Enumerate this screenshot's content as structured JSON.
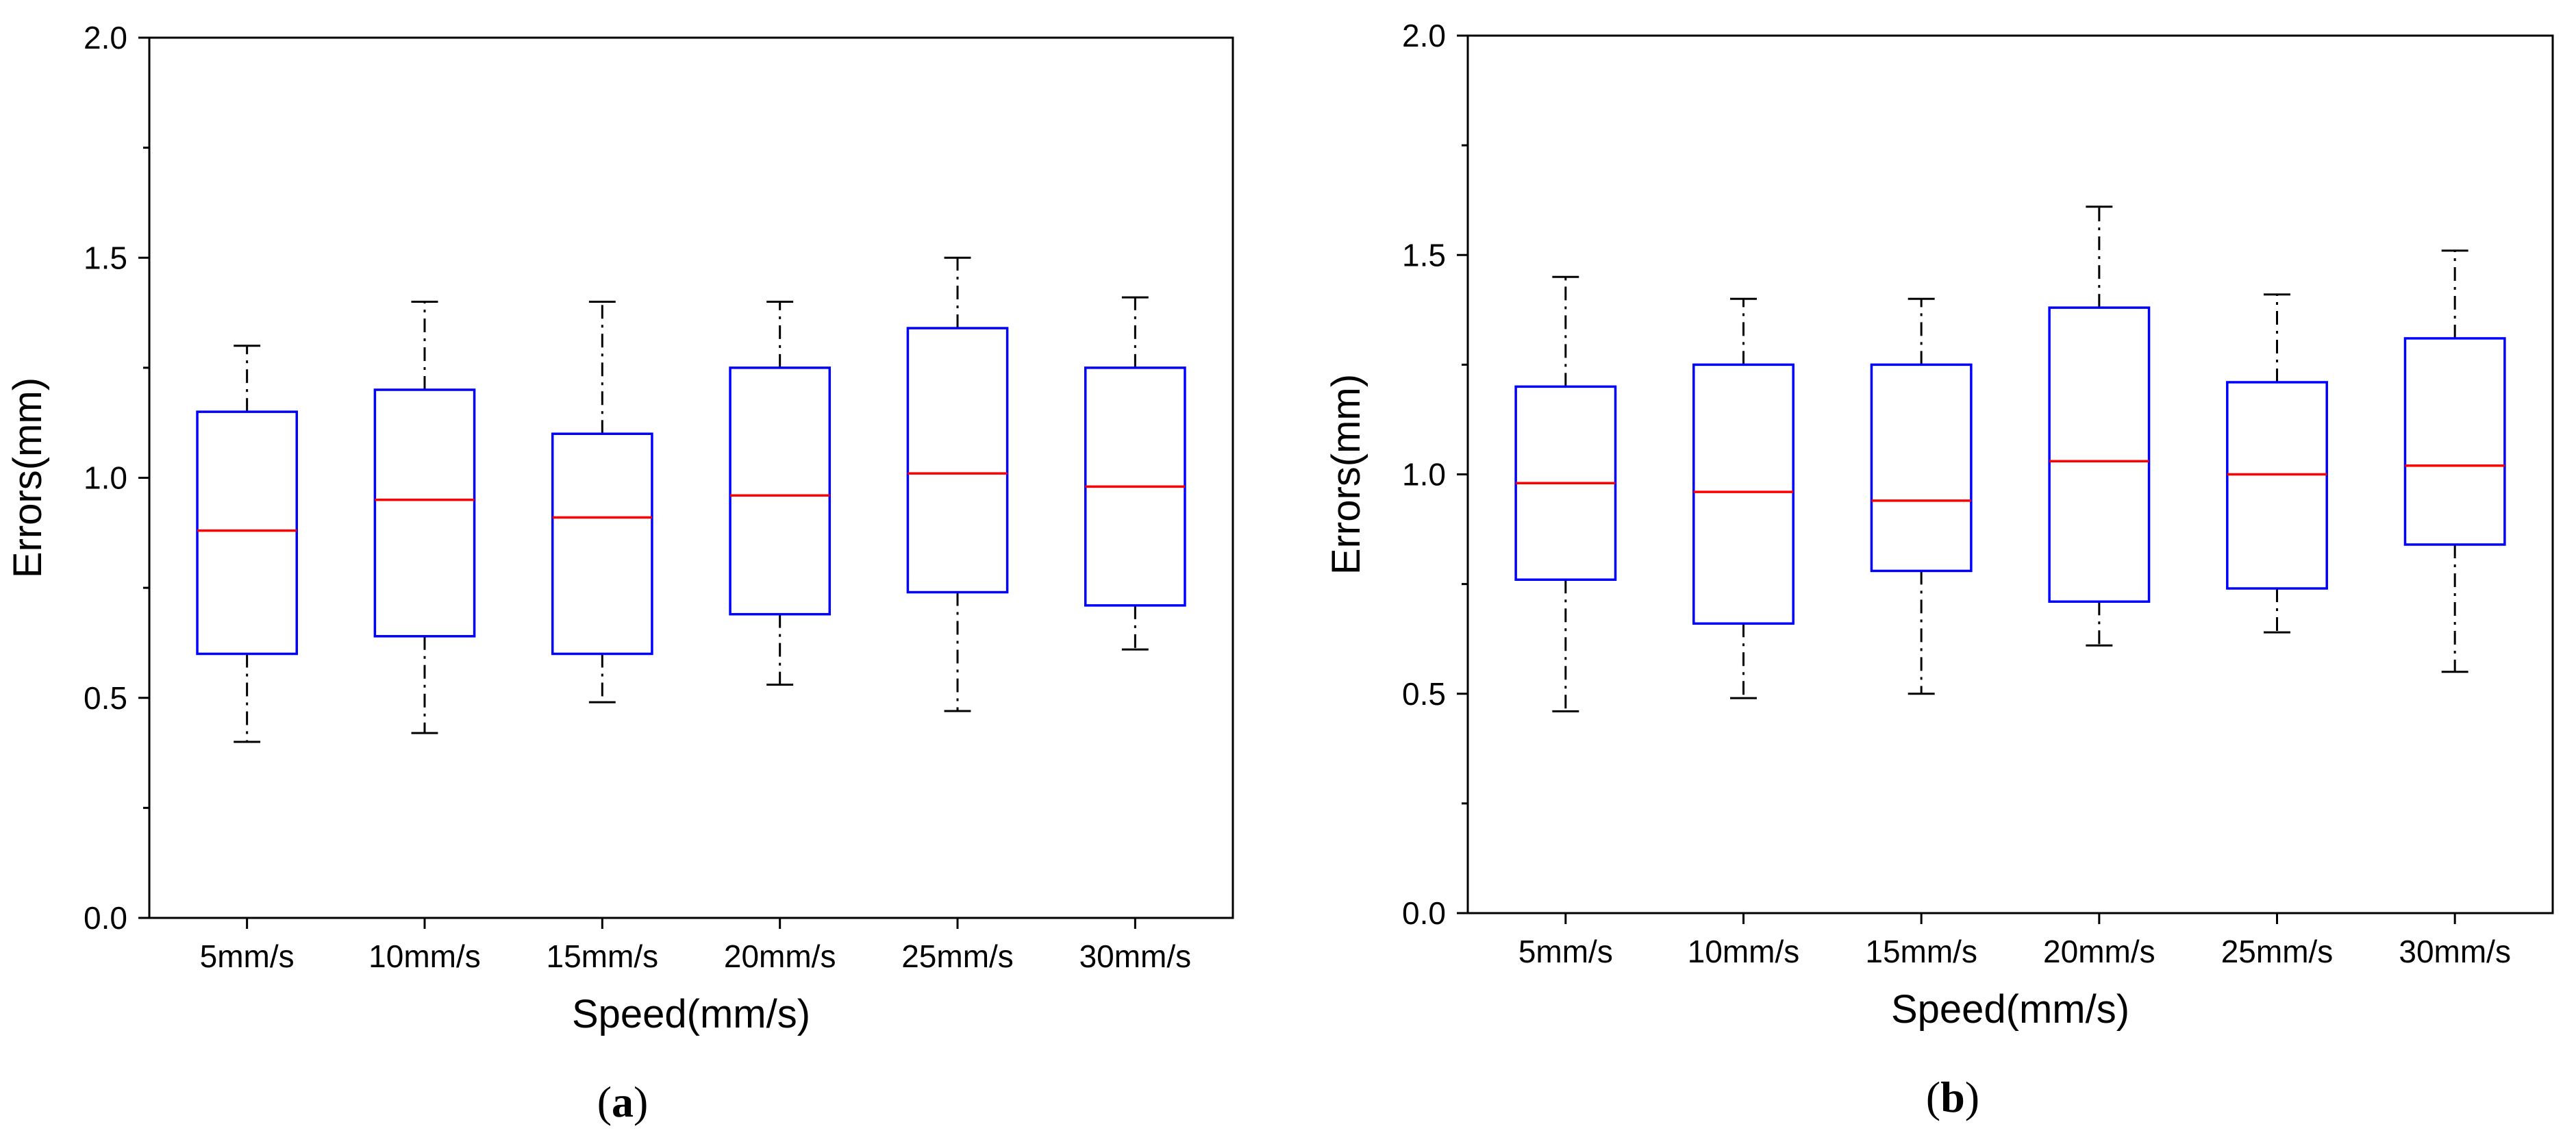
{
  "chart_data": [
    {
      "type": "box",
      "panel_label_open": "(",
      "panel_label_letter": "a",
      "panel_label_close": ")",
      "xlabel": "Speed(mm/s)",
      "ylabel": "Errors(mm)",
      "ylim": [
        0.0,
        2.0
      ],
      "yticks": [
        "0.0",
        "0.5",
        "1.0",
        "1.5",
        "2.0"
      ],
      "yminor": [
        0.25,
        0.75,
        1.25,
        1.75
      ],
      "categories": [
        "5mm/s",
        "10mm/s",
        "15mm/s",
        "20mm/s",
        "25mm/s",
        "30mm/s"
      ],
      "boxes": [
        {
          "min": 0.4,
          "q1": 0.6,
          "median": 0.88,
          "q3": 1.15,
          "max": 1.3
        },
        {
          "min": 0.42,
          "q1": 0.64,
          "median": 0.95,
          "q3": 1.2,
          "max": 1.4
        },
        {
          "min": 0.49,
          "q1": 0.6,
          "median": 0.91,
          "q3": 1.1,
          "max": 1.4
        },
        {
          "min": 0.53,
          "q1": 0.69,
          "median": 0.96,
          "q3": 1.25,
          "max": 1.4
        },
        {
          "min": 0.47,
          "q1": 0.74,
          "median": 1.01,
          "q3": 1.34,
          "max": 1.5
        },
        {
          "min": 0.61,
          "q1": 0.71,
          "median": 0.98,
          "q3": 1.25,
          "max": 1.41
        }
      ]
    },
    {
      "type": "box",
      "panel_label_open": "(",
      "panel_label_letter": "b",
      "panel_label_close": ")",
      "xlabel": "Speed(mm/s)",
      "ylabel": "Errors(mm)",
      "ylim": [
        0.0,
        2.0
      ],
      "yticks": [
        "0.0",
        "0.5",
        "1.0",
        "1.5",
        "2.0"
      ],
      "yminor": [
        0.25,
        0.75,
        1.25,
        1.75
      ],
      "categories": [
        "5mm/s",
        "10mm/s",
        "15mm/s",
        "20mm/s",
        "25mm/s",
        "30mm/s"
      ],
      "boxes": [
        {
          "min": 0.46,
          "q1": 0.76,
          "median": 0.98,
          "q3": 1.2,
          "max": 1.45
        },
        {
          "min": 0.49,
          "q1": 0.66,
          "median": 0.96,
          "q3": 1.25,
          "max": 1.4
        },
        {
          "min": 0.5,
          "q1": 0.78,
          "median": 0.94,
          "q3": 1.25,
          "max": 1.4
        },
        {
          "min": 0.61,
          "q1": 0.71,
          "median": 1.03,
          "q3": 1.38,
          "max": 1.61
        },
        {
          "min": 0.64,
          "q1": 0.74,
          "median": 1.0,
          "q3": 1.21,
          "max": 1.41
        },
        {
          "min": 0.55,
          "q1": 0.84,
          "median": 1.02,
          "q3": 1.31,
          "max": 1.51
        }
      ]
    }
  ],
  "colors": {
    "box": "#0000ff",
    "median": "#ff0000",
    "whisker": "#000000",
    "axis": "#000000"
  }
}
